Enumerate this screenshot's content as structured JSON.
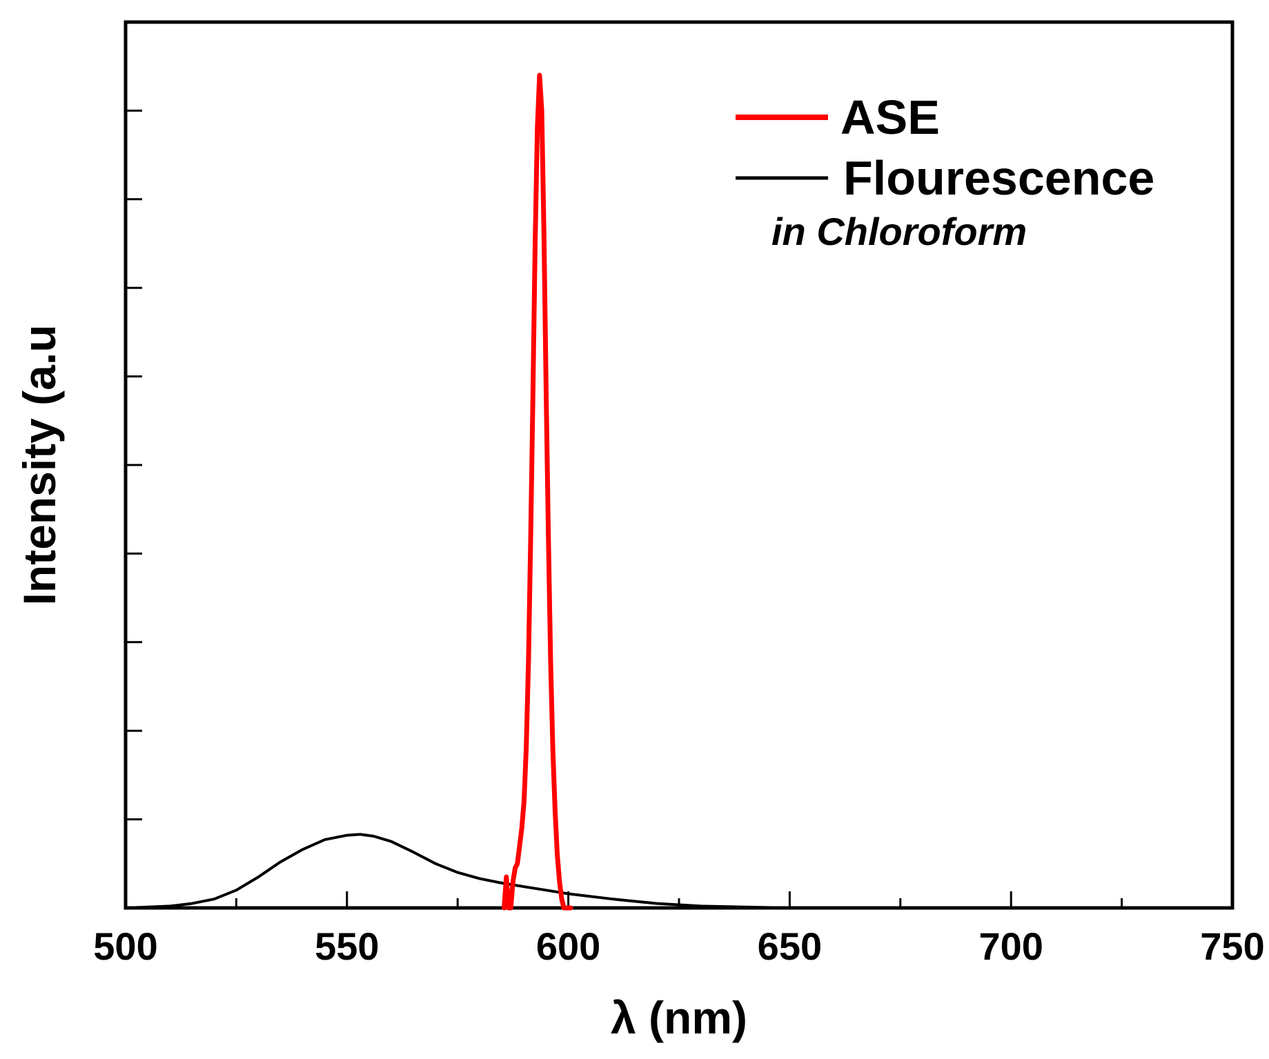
{
  "chart_data": {
    "type": "line",
    "xlabel": "λ (nm)",
    "ylabel": "Intensity (a.u",
    "xlim": [
      500,
      750
    ],
    "ylim": [
      0,
      1.0
    ],
    "xticks": [
      500,
      550,
      600,
      650,
      700,
      750
    ],
    "x_minor_step": 25,
    "yticks_unlabeled": [
      0.1,
      0.2,
      0.3,
      0.4,
      0.5,
      0.6,
      0.7,
      0.8,
      0.9
    ],
    "grid": false,
    "legend_position": "top-right",
    "annotation": "in Chloroform",
    "series": [
      {
        "name": "ASE",
        "color": "#ff0000",
        "x": [
          585.5,
          586.0,
          586.5,
          587.0,
          587.5,
          588.0,
          588.5,
          589.0,
          589.5,
          590.0,
          590.5,
          591.0,
          591.5,
          592.0,
          592.5,
          593.0,
          593.5,
          594.0,
          594.5,
          595.0,
          595.5,
          596.0,
          596.5,
          597.0,
          597.5,
          598.0,
          598.5,
          599.0,
          599.5,
          600.0,
          600.5
        ],
        "y": [
          0.0,
          0.035,
          0.0,
          0.0,
          0.03,
          0.045,
          0.05,
          0.07,
          0.09,
          0.12,
          0.18,
          0.28,
          0.42,
          0.58,
          0.75,
          0.88,
          0.94,
          0.9,
          0.76,
          0.58,
          0.42,
          0.28,
          0.18,
          0.11,
          0.06,
          0.03,
          0.01,
          0.0,
          0.0,
          0.0,
          0.0
        ]
      },
      {
        "name": "Flourescence",
        "color": "#000000",
        "x": [
          500,
          505,
          510,
          515,
          520,
          525,
          530,
          535,
          540,
          545,
          550,
          553,
          556,
          560,
          565,
          570,
          575,
          580,
          585,
          590,
          595,
          600,
          610,
          620,
          630,
          640,
          650,
          660,
          670
        ],
        "y": [
          0.0,
          0.001,
          0.002,
          0.005,
          0.01,
          0.02,
          0.035,
          0.052,
          0.066,
          0.077,
          0.082,
          0.083,
          0.081,
          0.075,
          0.063,
          0.05,
          0.04,
          0.033,
          0.028,
          0.024,
          0.02,
          0.016,
          0.01,
          0.005,
          0.002,
          0.001,
          0.0,
          0.0,
          0.0
        ]
      }
    ]
  }
}
